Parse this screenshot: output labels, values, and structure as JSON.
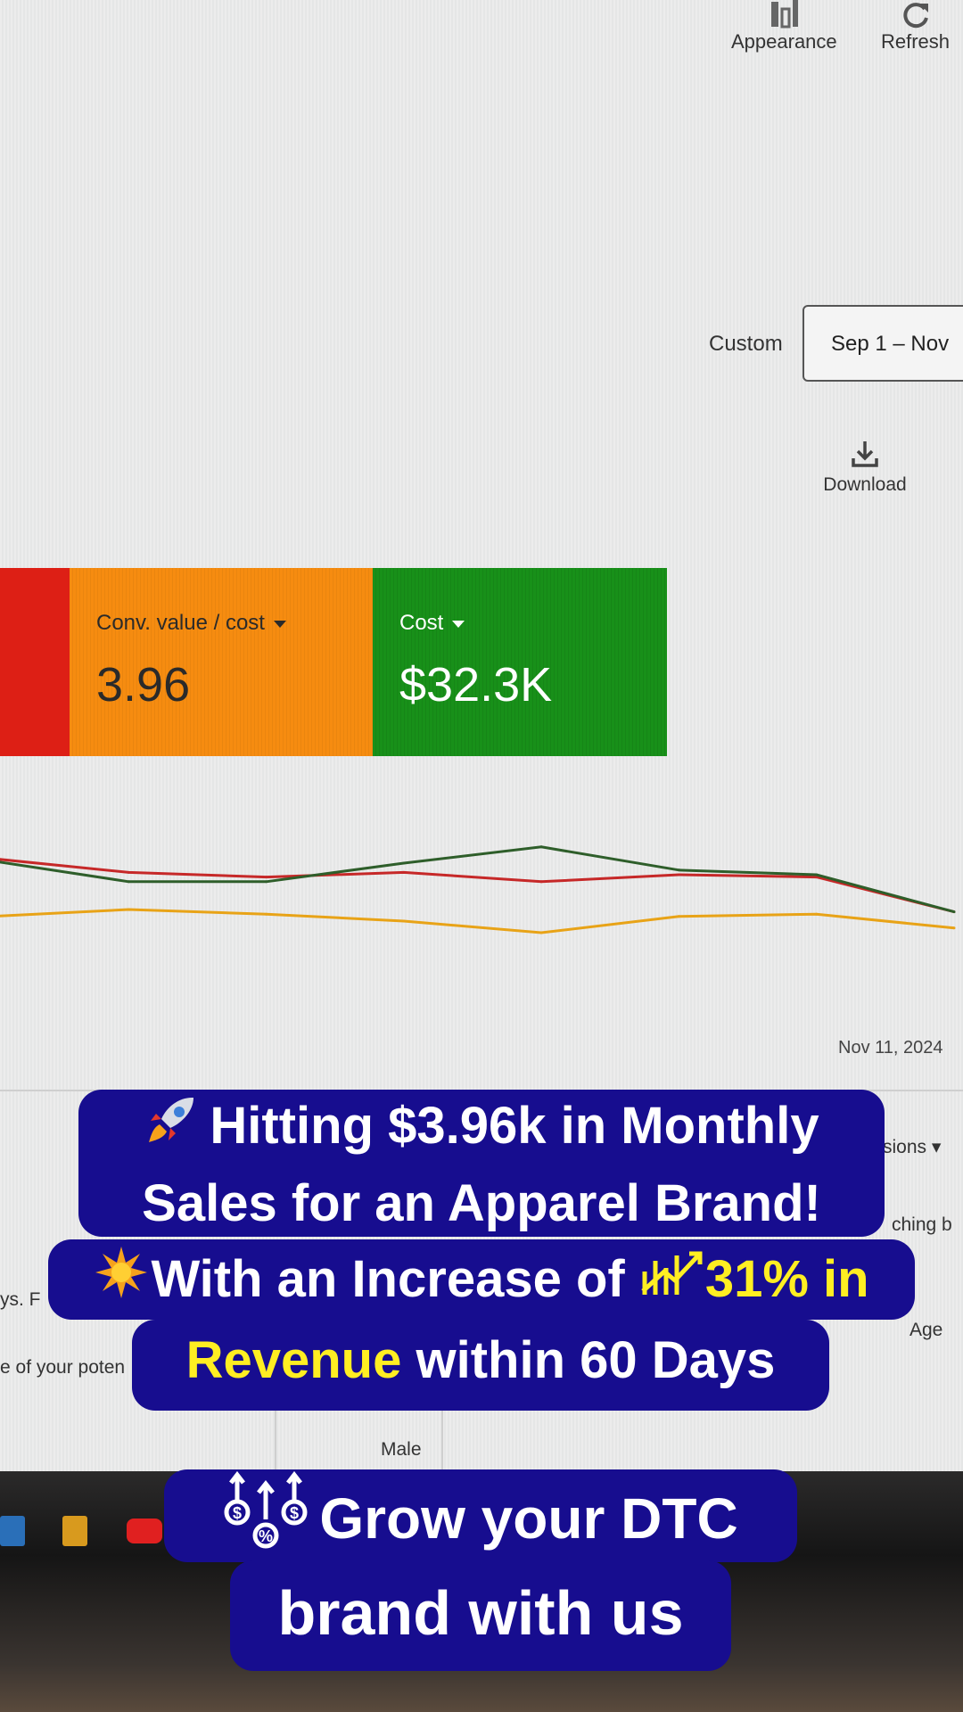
{
  "toolbar": {
    "appearance_label": "Appearance",
    "refresh_label": "Refresh",
    "download_label": "Download"
  },
  "date_range": {
    "preset_label": "Custom",
    "value": "Sep 1 – Nov"
  },
  "scorecards": [
    {
      "label": "Conv. value / cost",
      "value": "3.96",
      "color": "#f68c10"
    },
    {
      "label": "Cost",
      "value": "$32.3K",
      "color": "#189019"
    }
  ],
  "chart_data": {
    "type": "line",
    "x": [
      "1",
      "2",
      "3",
      "4",
      "5",
      "6",
      "7",
      "8"
    ],
    "series": [
      {
        "values": [
          72,
          66,
          64,
          66,
          62,
          65,
          64,
          49
        ],
        "color": "#c62828"
      },
      {
        "values": [
          71,
          62,
          62,
          70,
          77,
          67,
          65,
          49
        ],
        "color": "#2e5e2a"
      },
      {
        "values": [
          47,
          50,
          48,
          45,
          40,
          47,
          48,
          42
        ],
        "color": "#e8a317"
      }
    ],
    "ylim": [
      0,
      100
    ],
    "x_end_label": "Nov 11, 2024"
  },
  "background_fragments": {
    "conversions": "sions",
    "matching": "ching b",
    "age": "Age",
    "left_text_1": "ys. F",
    "left_text_2": "e of your poten",
    "male": "Male"
  },
  "overlay": {
    "headline_line1": "Hitting $3.96k in Monthly",
    "headline_line2": "Sales for an Apparel Brand!",
    "sub_line1_prefix": "With an Increase of ",
    "sub_line1_highlight": "31% in",
    "sub_line2_highlight": "Revenue",
    "sub_line2_suffix": " within 60 Days",
    "cta_line1": "Grow your DTC",
    "cta_line2": "brand with us"
  },
  "colors": {
    "caption_bg": "#170d8f",
    "caption_highlight": "#ffee22"
  }
}
